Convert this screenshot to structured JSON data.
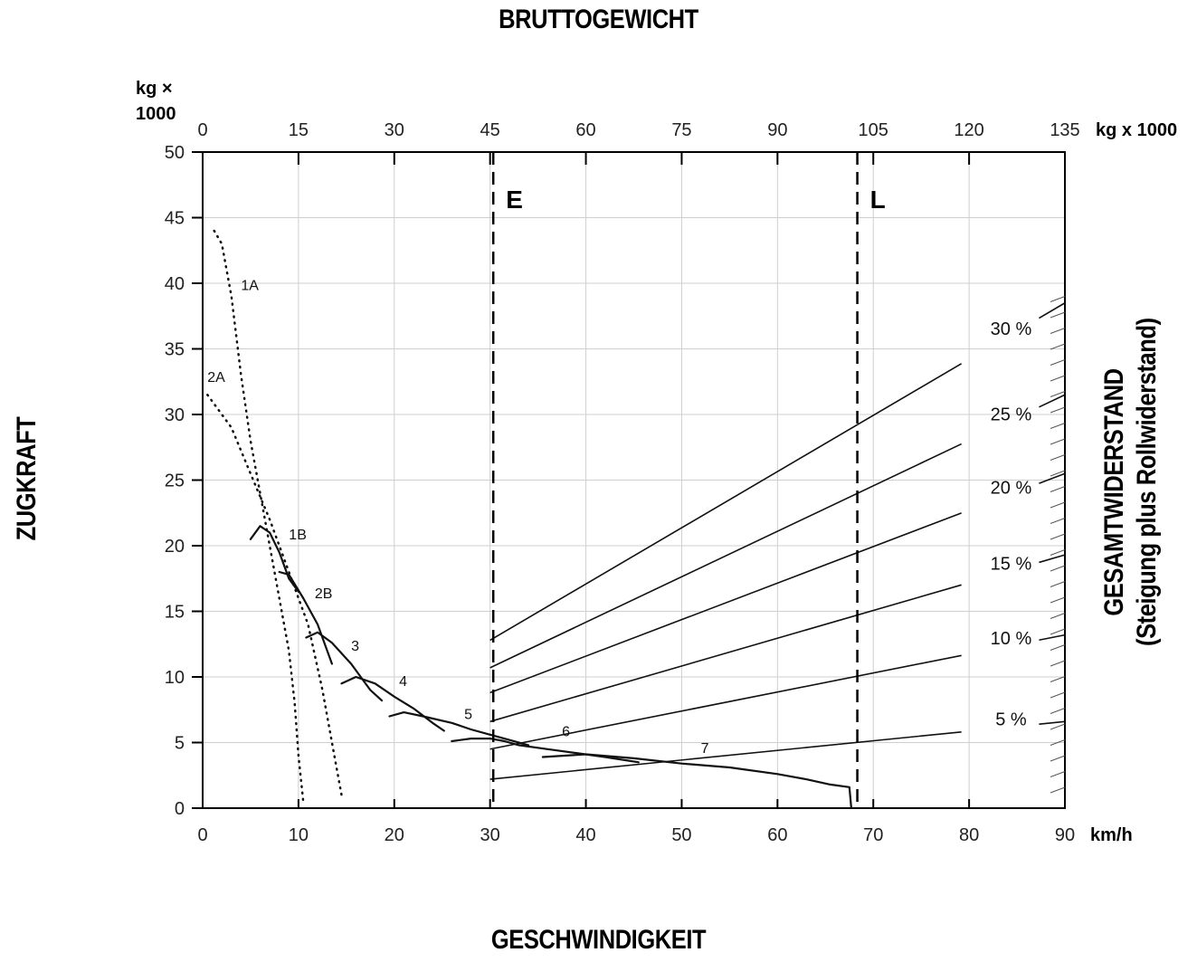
{
  "top_title": "BRUTTOGEWICHT",
  "bottom_title": "GESCHWINDIGKEIT",
  "left_title": "ZUGKRAFT",
  "right_title_line1": "GESAMTWIDERSTAND",
  "right_title_line2": "(Steigung plus Rollwiderstand)",
  "chart_data": {
    "type": "line",
    "x_axis": {
      "unit_label": "km/h",
      "range": [
        0,
        90
      ],
      "ticks": [
        0,
        10,
        20,
        30,
        40,
        50,
        60,
        70,
        80,
        90
      ]
    },
    "y_axis": {
      "unit_label_line1": "kg ×",
      "unit_label_line2": "1000",
      "range": [
        0,
        50
      ],
      "ticks": [
        0,
        5,
        10,
        15,
        20,
        25,
        30,
        35,
        40,
        45,
        50
      ]
    },
    "top_axis": {
      "unit_label": "kg x 1000",
      "range": [
        0,
        135
      ],
      "ticks": [
        0,
        15,
        30,
        45,
        60,
        75,
        90,
        105,
        120,
        135
      ]
    },
    "grid": true,
    "reference_lines": [
      {
        "label": "E",
        "weight": 45.5
      },
      {
        "label": "L",
        "weight": 102.5
      }
    ],
    "curves": [
      {
        "label": "1A",
        "style": "dotted",
        "label_at": [
          4,
          39.5
        ],
        "points": [
          [
            1.2,
            44
          ],
          [
            2,
            43
          ],
          [
            3,
            39
          ],
          [
            4,
            33
          ],
          [
            5,
            28
          ],
          [
            6,
            24
          ],
          [
            7,
            20
          ],
          [
            8,
            16
          ],
          [
            9,
            12
          ],
          [
            9.6,
            8
          ],
          [
            10,
            4
          ],
          [
            10.5,
            0.5
          ]
        ]
      },
      {
        "label": "2A",
        "style": "dotted",
        "label_at": [
          0.5,
          32.5
        ],
        "points": [
          [
            0.5,
            31.5
          ],
          [
            3,
            29
          ],
          [
            5,
            25.5
          ],
          [
            7,
            22
          ],
          [
            9,
            18
          ],
          [
            11,
            14
          ],
          [
            12.5,
            9
          ],
          [
            13.5,
            5
          ],
          [
            14.5,
            1
          ]
        ]
      },
      {
        "label": "1B",
        "style": "solid",
        "label_at": [
          9,
          20.5
        ],
        "points": [
          [
            5,
            20.5
          ],
          [
            6,
            21.5
          ],
          [
            7,
            21
          ],
          [
            8,
            19.5
          ],
          [
            9,
            17.5
          ],
          [
            10,
            16.5
          ]
        ]
      },
      {
        "label": "2B",
        "style": "solid",
        "label_at": [
          11.7,
          16
        ],
        "points": [
          [
            8,
            18
          ],
          [
            9,
            17.8
          ],
          [
            10.5,
            16
          ],
          [
            12,
            14
          ],
          [
            13.5,
            11
          ]
        ]
      },
      {
        "label": "3",
        "style": "solid",
        "label_at": [
          15.5,
          12
        ],
        "points": [
          [
            10.8,
            13
          ],
          [
            12,
            13.4
          ],
          [
            13.5,
            12.6
          ],
          [
            15.5,
            11
          ],
          [
            17.5,
            9
          ],
          [
            18.7,
            8.2
          ]
        ]
      },
      {
        "label": "4",
        "style": "solid",
        "label_at": [
          20.5,
          9.3
        ],
        "points": [
          [
            14.5,
            9.5
          ],
          [
            16,
            10
          ],
          [
            18,
            9.5
          ],
          [
            20,
            8.5
          ],
          [
            22,
            7.6
          ],
          [
            24,
            6.5
          ],
          [
            25.2,
            5.9
          ]
        ]
      },
      {
        "label": "5",
        "style": "solid",
        "label_at": [
          27.3,
          6.8
        ],
        "points": [
          [
            19.5,
            7
          ],
          [
            21,
            7.3
          ],
          [
            23,
            7
          ],
          [
            26,
            6.5
          ],
          [
            28,
            6
          ],
          [
            30,
            5.6
          ],
          [
            32,
            5.2
          ],
          [
            34,
            4.8
          ]
        ]
      },
      {
        "label": "6",
        "style": "solid",
        "label_at": [
          37.5,
          5.5
        ],
        "points": [
          [
            26,
            5.1
          ],
          [
            28,
            5.3
          ],
          [
            30,
            5.3
          ],
          [
            31.5,
            5.1
          ],
          [
            33,
            4.8
          ],
          [
            36,
            4.5
          ],
          [
            39,
            4.2
          ],
          [
            42,
            3.9
          ],
          [
            45.5,
            3.5
          ]
        ]
      },
      {
        "label": "7",
        "style": "solid",
        "label_at": [
          52,
          4.2
        ],
        "points": [
          [
            35.5,
            3.9
          ],
          [
            40,
            4.1
          ],
          [
            45,
            3.8
          ],
          [
            50,
            3.4
          ],
          [
            55,
            3.1
          ],
          [
            60,
            2.6
          ],
          [
            63,
            2.2
          ],
          [
            65.5,
            1.8
          ],
          [
            67.5,
            1.6
          ],
          [
            67.7,
            0
          ]
        ]
      }
    ],
    "grade_lines": [
      {
        "label": "30 %",
        "y_at_weight_45": 12.8,
        "y_at_weight_135": 38.5
      },
      {
        "label": "25 %",
        "y_at_weight_45": 10.7,
        "y_at_weight_135": 31.5
      },
      {
        "label": "20 %",
        "y_at_weight_45": 8.8,
        "y_at_weight_135": 25.5
      },
      {
        "label": "15 %",
        "y_at_weight_45": 6.6,
        "y_at_weight_135": 19.3
      },
      {
        "label": "10 %",
        "y_at_weight_45": 4.5,
        "y_at_weight_135": 13.2
      },
      {
        "label": "5 %",
        "y_at_weight_45": 2.2,
        "y_at_weight_135": 6.6
      }
    ]
  }
}
